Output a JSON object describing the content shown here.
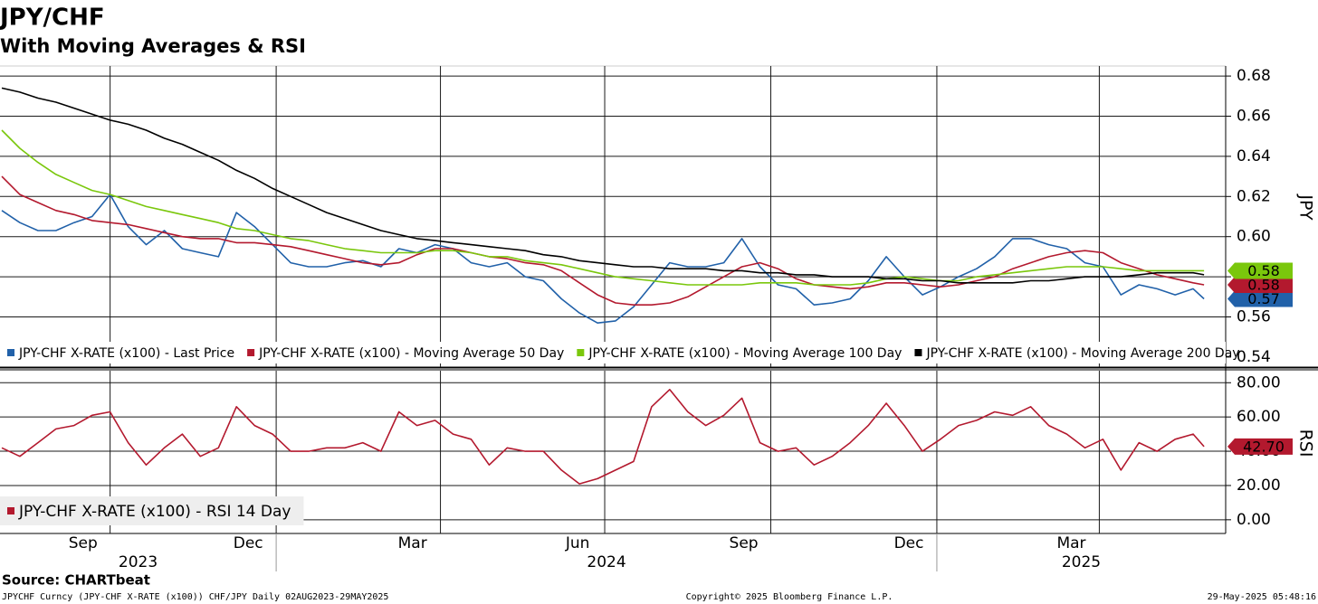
{
  "title": "JPY/CHF",
  "subtitle": "With Moving Averages & RSI",
  "chart_data": [
    {
      "type": "line",
      "y_label": "JPY",
      "legend": "bottom-left",
      "grid": true,
      "xlim": [
        "2023-08-01",
        "2025-06-10"
      ],
      "x": [
        "2023-08-02",
        "2023-08-12",
        "2023-08-22",
        "2023-09-01",
        "2023-09-11",
        "2023-09-21",
        "2023-10-01",
        "2023-10-11",
        "2023-10-21",
        "2023-10-31",
        "2023-11-10",
        "2023-11-20",
        "2023-11-30",
        "2023-12-10",
        "2023-12-20",
        "2023-12-30",
        "2024-01-09",
        "2024-01-19",
        "2024-01-29",
        "2024-02-08",
        "2024-02-18",
        "2024-02-28",
        "2024-03-09",
        "2024-03-19",
        "2024-03-29",
        "2024-04-08",
        "2024-04-18",
        "2024-04-28",
        "2024-05-08",
        "2024-05-18",
        "2024-05-28",
        "2024-06-07",
        "2024-06-17",
        "2024-06-27",
        "2024-07-07",
        "2024-07-17",
        "2024-07-27",
        "2024-08-06",
        "2024-08-16",
        "2024-08-26",
        "2024-09-05",
        "2024-09-15",
        "2024-09-25",
        "2024-10-05",
        "2024-10-15",
        "2024-10-25",
        "2024-11-04",
        "2024-11-14",
        "2024-11-24",
        "2024-12-04",
        "2024-12-14",
        "2024-12-24",
        "2025-01-03",
        "2025-01-13",
        "2025-01-23",
        "2025-02-02",
        "2025-02-12",
        "2025-02-22",
        "2025-03-04",
        "2025-03-14",
        "2025-03-24",
        "2025-04-03",
        "2025-04-13",
        "2025-04-23",
        "2025-05-03",
        "2025-05-13",
        "2025-05-23",
        "2025-05-29"
      ],
      "ylim": [
        0.535,
        0.685
      ],
      "yticks": [
        0.54,
        0.56,
        0.58,
        {
          "value": 0.6,
          "label": "0.60"
        },
        0.62,
        0.64,
        0.66,
        0.68
      ],
      "series": [
        {
          "name": "JPY-CHF X-RATE (x100) - Last Price",
          "color": "#2161a9",
          "values": [
            0.613,
            0.607,
            0.603,
            0.603,
            0.607,
            0.61,
            0.621,
            0.605,
            0.596,
            0.603,
            0.594,
            0.592,
            0.59,
            0.612,
            0.605,
            0.596,
            0.587,
            0.585,
            0.585,
            0.587,
            0.588,
            0.585,
            0.594,
            0.592,
            0.596,
            0.594,
            0.587,
            0.585,
            0.587,
            0.58,
            0.578,
            0.569,
            0.562,
            0.557,
            0.558,
            0.565,
            0.576,
            0.587,
            0.585,
            0.585,
            0.587,
            0.599,
            0.585,
            0.576,
            0.574,
            0.566,
            0.567,
            0.569,
            0.578,
            0.59,
            0.58,
            0.571,
            0.575,
            0.58,
            0.584,
            0.59,
            0.599,
            0.599,
            0.596,
            0.594,
            0.587,
            0.585,
            0.571,
            0.576,
            0.574,
            0.571,
            0.574,
            0.569
          ],
          "value_labels": [
            null,
            null,
            null,
            null,
            null,
            null,
            null,
            null,
            null,
            null,
            null,
            null,
            null,
            null,
            null,
            null,
            null,
            null,
            null,
            null,
            null,
            null,
            null,
            null,
            null,
            null,
            null,
            null,
            null,
            null,
            null,
            null,
            null,
            null,
            null,
            null,
            null,
            null,
            null,
            null,
            null,
            null,
            null,
            null,
            null,
            null,
            null,
            null,
            null,
            null,
            null,
            null,
            null,
            null,
            null,
            null,
            null,
            null,
            null,
            null,
            null,
            null,
            null,
            null,
            null,
            null,
            null,
            "0.57"
          ]
        },
        {
          "name": "JPY-CHF X-RATE (x100) - Moving Average 50 Day",
          "color": "#b3192e",
          "values": [
            0.63,
            0.621,
            0.617,
            0.613,
            0.611,
            0.608,
            0.607,
            0.606,
            0.604,
            0.602,
            0.6,
            0.599,
            0.599,
            0.597,
            0.597,
            0.596,
            0.595,
            0.593,
            0.591,
            0.589,
            0.587,
            0.586,
            0.587,
            0.591,
            0.594,
            0.594,
            0.592,
            0.59,
            0.589,
            0.587,
            0.586,
            0.583,
            0.577,
            0.571,
            0.567,
            0.566,
            0.566,
            0.567,
            0.57,
            0.575,
            0.58,
            0.585,
            0.587,
            0.584,
            0.579,
            0.576,
            0.575,
            0.574,
            0.575,
            0.577,
            0.577,
            0.576,
            0.575,
            0.576,
            0.578,
            0.58,
            0.584,
            0.587,
            0.59,
            0.592,
            0.593,
            0.592,
            0.587,
            0.584,
            0.581,
            0.579,
            0.577,
            0.576
          ],
          "value_labels": [
            null,
            null,
            null,
            null,
            null,
            null,
            null,
            null,
            null,
            null,
            null,
            null,
            null,
            null,
            null,
            null,
            null,
            null,
            null,
            null,
            null,
            null,
            null,
            null,
            null,
            null,
            null,
            null,
            null,
            null,
            null,
            null,
            null,
            null,
            null,
            null,
            null,
            null,
            null,
            null,
            null,
            null,
            null,
            null,
            null,
            null,
            null,
            null,
            null,
            null,
            null,
            null,
            null,
            null,
            null,
            null,
            null,
            null,
            null,
            null,
            null,
            null,
            null,
            null,
            null,
            null,
            null,
            "0.58"
          ]
        },
        {
          "name": "JPY-CHF X-RATE (x100) - Moving Average 100 Day",
          "color": "#7ac70c",
          "values": [
            0.653,
            0.644,
            0.637,
            0.631,
            0.627,
            0.623,
            0.621,
            0.618,
            0.615,
            0.613,
            0.611,
            0.609,
            0.607,
            0.604,
            0.603,
            0.601,
            0.599,
            0.598,
            0.596,
            0.594,
            0.593,
            0.592,
            0.592,
            0.592,
            0.593,
            0.593,
            0.592,
            0.59,
            0.59,
            0.588,
            0.587,
            0.586,
            0.584,
            0.582,
            0.58,
            0.579,
            0.578,
            0.577,
            0.576,
            0.576,
            0.576,
            0.576,
            0.577,
            0.577,
            0.577,
            0.576,
            0.576,
            0.576,
            0.577,
            0.579,
            0.58,
            0.579,
            0.578,
            0.578,
            0.58,
            0.581,
            0.582,
            0.583,
            0.584,
            0.585,
            0.585,
            0.585,
            0.584,
            0.583,
            0.583,
            0.583,
            0.583,
            0.583
          ],
          "value_labels": [
            null,
            null,
            null,
            null,
            null,
            null,
            null,
            null,
            null,
            null,
            null,
            null,
            null,
            null,
            null,
            null,
            null,
            null,
            null,
            null,
            null,
            null,
            null,
            null,
            null,
            null,
            null,
            null,
            null,
            null,
            null,
            null,
            null,
            null,
            null,
            null,
            null,
            null,
            null,
            null,
            null,
            null,
            null,
            null,
            null,
            null,
            null,
            null,
            null,
            null,
            null,
            null,
            null,
            null,
            null,
            null,
            null,
            null,
            null,
            null,
            null,
            null,
            null,
            null,
            null,
            null,
            null,
            "0.58"
          ]
        },
        {
          "name": "JPY-CHF X-RATE (x100) - Moving Average 200 Day",
          "color": "#000000",
          "values": [
            0.674,
            0.672,
            0.669,
            0.667,
            0.664,
            0.661,
            0.658,
            0.656,
            0.653,
            0.649,
            0.646,
            0.642,
            0.638,
            0.633,
            0.629,
            0.624,
            0.62,
            0.616,
            0.612,
            0.609,
            0.606,
            0.603,
            0.601,
            0.599,
            0.598,
            0.597,
            0.596,
            0.595,
            0.594,
            0.593,
            0.591,
            0.59,
            0.588,
            0.587,
            0.586,
            0.585,
            0.585,
            0.584,
            0.584,
            0.584,
            0.583,
            0.583,
            0.582,
            0.582,
            0.581,
            0.581,
            0.58,
            0.58,
            0.58,
            0.579,
            0.579,
            0.578,
            0.578,
            0.577,
            0.577,
            0.577,
            0.577,
            0.578,
            0.578,
            0.579,
            0.58,
            0.58,
            0.58,
            0.581,
            0.582,
            0.582,
            0.582,
            0.581
          ]
        }
      ]
    },
    {
      "type": "line",
      "y_label": "RSI",
      "legend": "bottom-left",
      "grid": true,
      "xlim": [
        "2023-08-01",
        "2025-06-10"
      ],
      "x": [
        "2023-08-02",
        "2023-08-12",
        "2023-08-22",
        "2023-09-01",
        "2023-09-11",
        "2023-09-21",
        "2023-10-01",
        "2023-10-11",
        "2023-10-21",
        "2023-10-31",
        "2023-11-10",
        "2023-11-20",
        "2023-11-30",
        "2023-12-10",
        "2023-12-20",
        "2023-12-30",
        "2024-01-09",
        "2024-01-19",
        "2024-01-29",
        "2024-02-08",
        "2024-02-18",
        "2024-02-28",
        "2024-03-09",
        "2024-03-19",
        "2024-03-29",
        "2024-04-08",
        "2024-04-18",
        "2024-04-28",
        "2024-05-08",
        "2024-05-18",
        "2024-05-28",
        "2024-06-07",
        "2024-06-17",
        "2024-06-27",
        "2024-07-07",
        "2024-07-17",
        "2024-07-27",
        "2024-08-06",
        "2024-08-16",
        "2024-08-26",
        "2024-09-05",
        "2024-09-15",
        "2024-09-25",
        "2024-10-05",
        "2024-10-15",
        "2024-10-25",
        "2024-11-04",
        "2024-11-14",
        "2024-11-24",
        "2024-12-04",
        "2024-12-14",
        "2024-12-24",
        "2025-01-03",
        "2025-01-13",
        "2025-01-23",
        "2025-02-02",
        "2025-02-12",
        "2025-02-22",
        "2025-03-04",
        "2025-03-14",
        "2025-03-24",
        "2025-04-03",
        "2025-04-13",
        "2025-04-23",
        "2025-05-03",
        "2025-05-13",
        "2025-05-23",
        "2025-05-29"
      ],
      "xticks": [
        {
          "value": "2023-09",
          "label": "Sep"
        },
        {
          "value": "2023-12",
          "label": "Dec"
        },
        {
          "value": "2024-03",
          "label": "Mar"
        },
        {
          "value": "2024-06",
          "label": "Jun"
        },
        {
          "value": "2024-09",
          "label": "Sep"
        },
        {
          "value": "2024-12",
          "label": "Dec"
        },
        {
          "value": "2025-03",
          "label": "Mar"
        }
      ],
      "years": [
        "2023",
        "2024",
        "2025"
      ],
      "ylim": [
        -8,
        87
      ],
      "yticks": [
        {
          "value": 0,
          "label": "0.00"
        },
        {
          "value": 20,
          "label": "20.00"
        },
        {
          "value": 40,
          "label": "40.00"
        },
        {
          "value": 60,
          "label": "60.00"
        },
        {
          "value": 80,
          "label": "80.00"
        }
      ],
      "series": [
        {
          "name": "JPY-CHF X-RATE (x100) - RSI 14 Day",
          "color": "#b3192e",
          "values": [
            42,
            37,
            45,
            53,
            55,
            61,
            63,
            45,
            32,
            42,
            50,
            37,
            42,
            66,
            55,
            50,
            40,
            40,
            42,
            42,
            45,
            40,
            63,
            55,
            58,
            50,
            47,
            32,
            42,
            40,
            40,
            29,
            21,
            24,
            29,
            34,
            66,
            76,
            63,
            55,
            61,
            71,
            45,
            40,
            42,
            32,
            37,
            45,
            55,
            68,
            55,
            40,
            47,
            55,
            58,
            63,
            61,
            66,
            55,
            50,
            42,
            47,
            29,
            45,
            40,
            47,
            50,
            42.7
          ],
          "value_labels": [
            null,
            null,
            null,
            null,
            null,
            null,
            null,
            null,
            null,
            null,
            null,
            null,
            null,
            null,
            null,
            null,
            null,
            null,
            null,
            null,
            null,
            null,
            null,
            null,
            null,
            null,
            null,
            null,
            null,
            null,
            null,
            null,
            null,
            null,
            null,
            null,
            null,
            null,
            null,
            null,
            null,
            null,
            null,
            null,
            null,
            null,
            null,
            null,
            null,
            null,
            null,
            null,
            null,
            null,
            null,
            null,
            null,
            null,
            null,
            null,
            null,
            null,
            null,
            null,
            null,
            null,
            null,
            "42.70"
          ]
        }
      ]
    }
  ],
  "source": "Source: CHARTbeat",
  "footer": {
    "left": "JPYCHF Curncy (JPY-CHF X-RATE (x100)) CHF/JPY  Daily 02AUG2023-29MAY2025",
    "center": "Copyright© 2025 Bloomberg Finance L.P.",
    "right": "29-May-2025 05:48:16"
  }
}
